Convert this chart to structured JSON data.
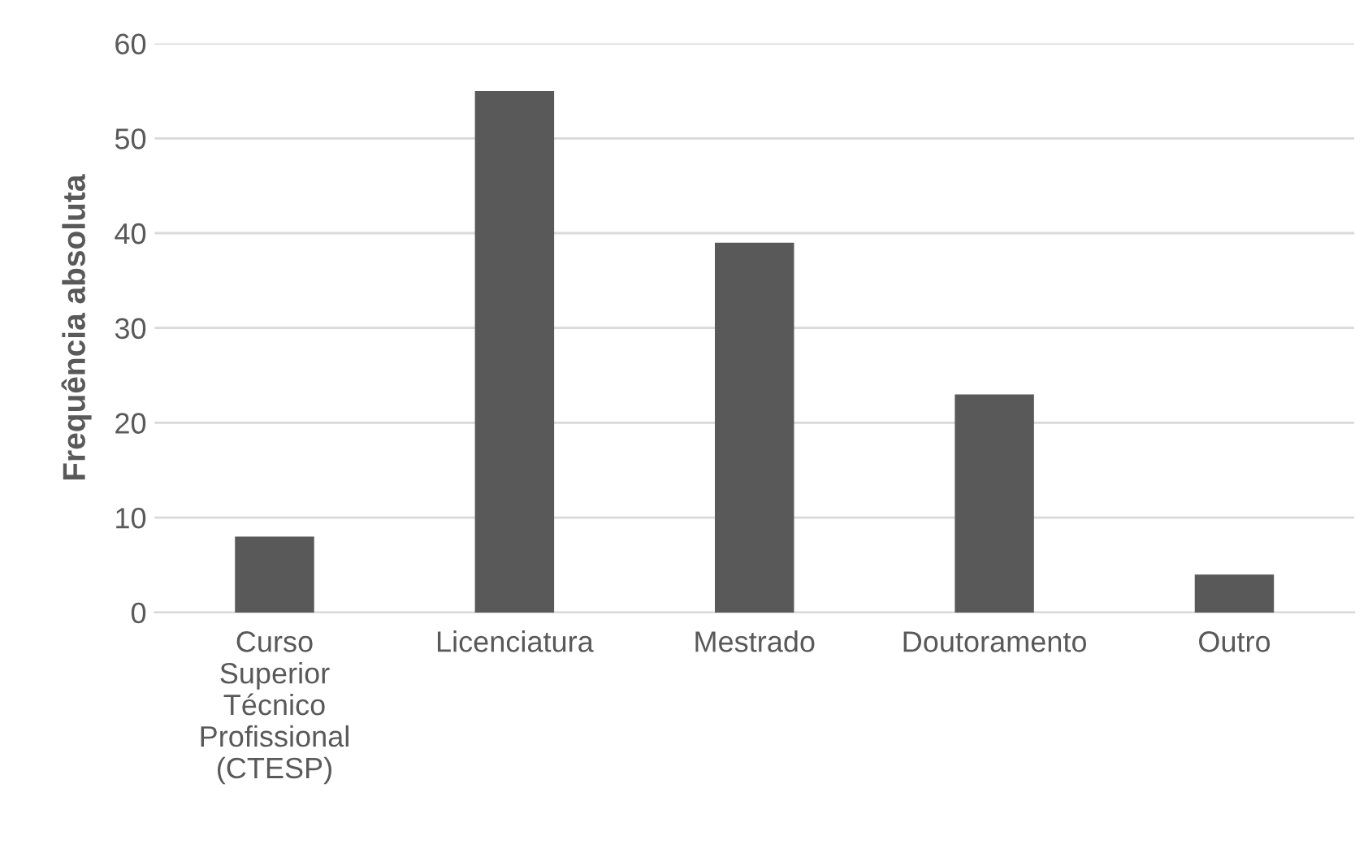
{
  "chart_data": {
    "type": "bar",
    "ylabel": "Frequência absoluta",
    "categories": [
      "Curso\nSuperior\nTécnico\nProfissional\n(CTESP)",
      "Licenciatura",
      "Mestrado",
      "Doutoramento",
      "Outro"
    ],
    "values": [
      8,
      55,
      39,
      23,
      4
    ],
    "color": "#595959",
    "ylim": [
      0,
      60
    ],
    "yticks": [
      0,
      10,
      20,
      30,
      40,
      50,
      60
    ],
    "grid": "y"
  }
}
